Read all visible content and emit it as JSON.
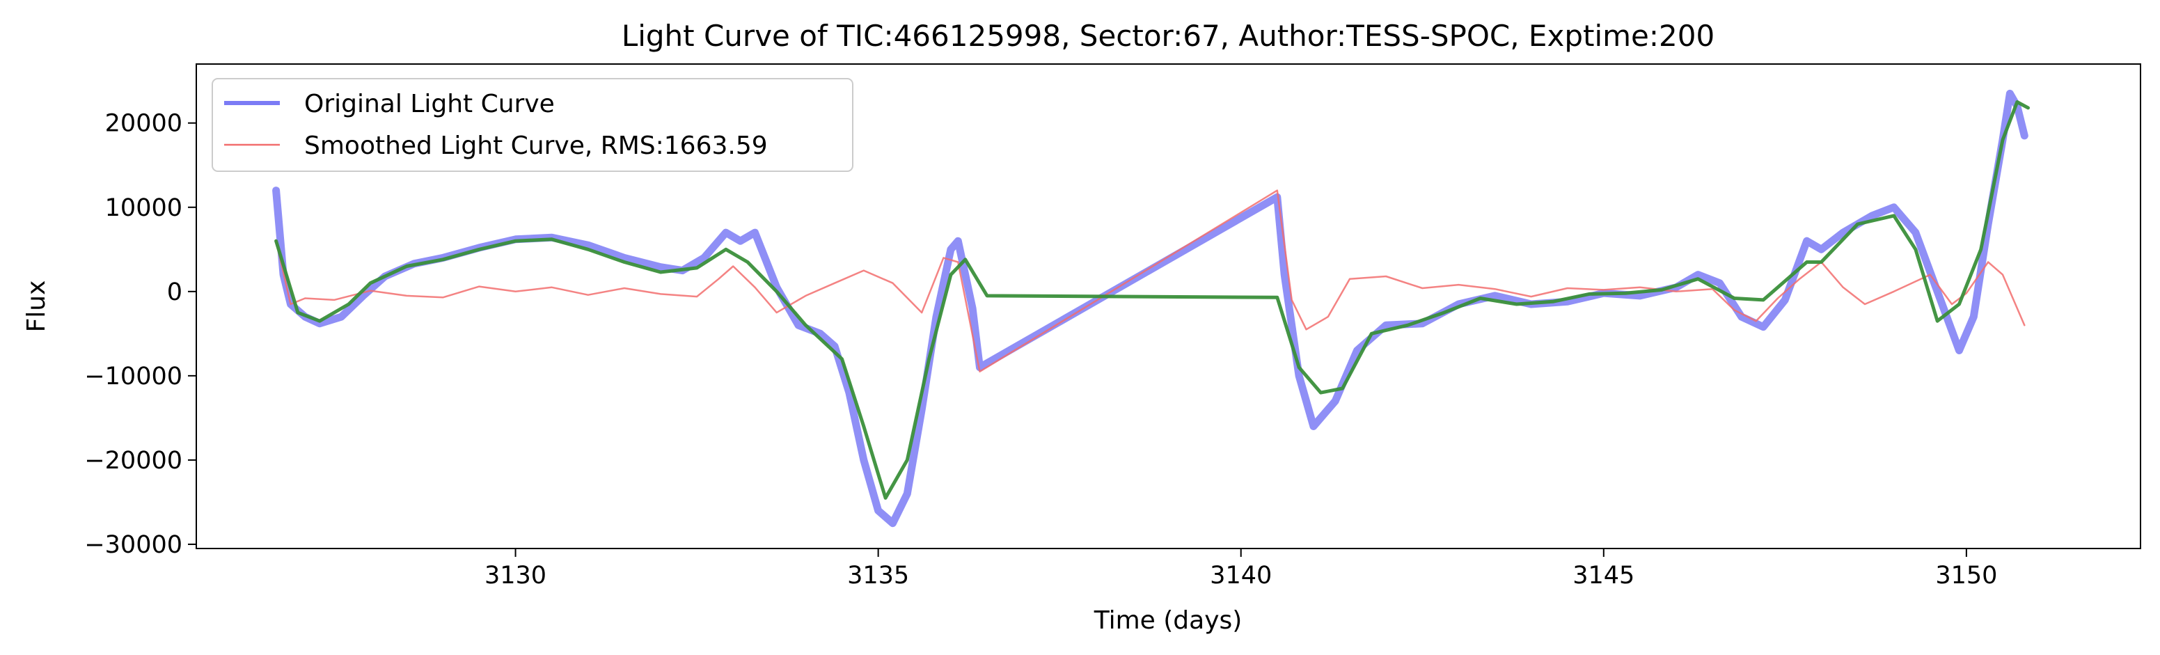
{
  "chart_data": {
    "type": "line",
    "title": "Light Curve of TIC:466125998, Sector:67, Author:TESS-SPOC, Exptime:200",
    "xlabel": "Time (days)",
    "ylabel": "Flux",
    "xlim": [
      3125.6,
      3152.4
    ],
    "ylim": [
      -30500,
      27000
    ],
    "xticks": [
      3130,
      3135,
      3140,
      3145,
      3150
    ],
    "xtick_labels": [
      "3130",
      "3135",
      "3140",
      "3145",
      "3150"
    ],
    "yticks": [
      -30000,
      -20000,
      -10000,
      0,
      10000,
      20000
    ],
    "ytick_labels": [
      "−30000",
      "−20000",
      "−10000",
      "0",
      "10000",
      "20000"
    ],
    "grid": false,
    "legend_position": "top-left",
    "series": [
      {
        "name": "Original Light Curve",
        "color": "#7b7bf5",
        "style": "thick",
        "points": [
          [
            3126.7,
            12000
          ],
          [
            3126.8,
            2000
          ],
          [
            3126.9,
            -1500
          ],
          [
            3127.1,
            -3000
          ],
          [
            3127.3,
            -3800
          ],
          [
            3127.6,
            -3000
          ],
          [
            3127.9,
            -500
          ],
          [
            3128.2,
            1800
          ],
          [
            3128.6,
            3300
          ],
          [
            3129.0,
            4000
          ],
          [
            3129.5,
            5200
          ],
          [
            3130.0,
            6200
          ],
          [
            3130.5,
            6400
          ],
          [
            3131.0,
            5500
          ],
          [
            3131.5,
            4000
          ],
          [
            3132.0,
            2900
          ],
          [
            3132.3,
            2500
          ],
          [
            3132.6,
            4000
          ],
          [
            3132.9,
            7000
          ],
          [
            3133.1,
            6000
          ],
          [
            3133.3,
            7000
          ],
          [
            3133.6,
            500
          ],
          [
            3133.9,
            -4000
          ],
          [
            3134.2,
            -5000
          ],
          [
            3134.4,
            -6500
          ],
          [
            3134.6,
            -12000
          ],
          [
            3134.8,
            -20000
          ],
          [
            3135.0,
            -26000
          ],
          [
            3135.2,
            -27500
          ],
          [
            3135.4,
            -24000
          ],
          [
            3135.6,
            -14000
          ],
          [
            3135.8,
            -3000
          ],
          [
            3136.0,
            5000
          ],
          [
            3136.1,
            6000
          ],
          [
            3136.3,
            -2000
          ],
          [
            3136.4,
            -9000
          ],
          [
            3140.5,
            11200
          ],
          [
            3140.6,
            2000
          ],
          [
            3140.8,
            -10000
          ],
          [
            3141.0,
            -16000
          ],
          [
            3141.3,
            -13000
          ],
          [
            3141.6,
            -7000
          ],
          [
            3142.0,
            -4000
          ],
          [
            3142.5,
            -3800
          ],
          [
            3143.0,
            -1500
          ],
          [
            3143.5,
            -500
          ],
          [
            3144.0,
            -1500
          ],
          [
            3144.5,
            -1200
          ],
          [
            3145.0,
            -200
          ],
          [
            3145.5,
            -500
          ],
          [
            3146.0,
            500
          ],
          [
            3146.3,
            2000
          ],
          [
            3146.6,
            1000
          ],
          [
            3146.9,
            -3000
          ],
          [
            3147.2,
            -4200
          ],
          [
            3147.5,
            -1000
          ],
          [
            3147.8,
            6000
          ],
          [
            3148.0,
            5000
          ],
          [
            3148.3,
            7000
          ],
          [
            3148.7,
            9000
          ],
          [
            3149.0,
            10000
          ],
          [
            3149.3,
            7000
          ],
          [
            3149.6,
            0
          ],
          [
            3149.9,
            -7000
          ],
          [
            3150.1,
            -3000
          ],
          [
            3150.3,
            8000
          ],
          [
            3150.5,
            18000
          ],
          [
            3150.6,
            23500
          ],
          [
            3150.7,
            22000
          ],
          [
            3150.8,
            18500
          ]
        ]
      },
      {
        "name": "Smoothed Light Curve, RMS:1663.59",
        "color": "#f26d6d",
        "style": "thin",
        "points": [
          [
            3126.7,
            6000
          ],
          [
            3126.9,
            -1500
          ],
          [
            3127.1,
            -800
          ],
          [
            3127.5,
            -1000
          ],
          [
            3128.0,
            100
          ],
          [
            3128.5,
            -500
          ],
          [
            3129.0,
            -700
          ],
          [
            3129.5,
            600
          ],
          [
            3130.0,
            0
          ],
          [
            3130.5,
            500
          ],
          [
            3131.0,
            -400
          ],
          [
            3131.5,
            400
          ],
          [
            3132.0,
            -300
          ],
          [
            3132.5,
            -600
          ],
          [
            3132.8,
            1500
          ],
          [
            3133.0,
            3000
          ],
          [
            3133.3,
            500
          ],
          [
            3133.6,
            -2500
          ],
          [
            3134.0,
            -500
          ],
          [
            3134.4,
            1000
          ],
          [
            3134.8,
            2500
          ],
          [
            3135.2,
            1000
          ],
          [
            3135.6,
            -2500
          ],
          [
            3135.9,
            4000
          ],
          [
            3136.1,
            3500
          ],
          [
            3136.4,
            -9500
          ],
          [
            3140.5,
            12000
          ],
          [
            3140.7,
            -1000
          ],
          [
            3140.9,
            -4500
          ],
          [
            3141.2,
            -3000
          ],
          [
            3141.5,
            1500
          ],
          [
            3142.0,
            1800
          ],
          [
            3142.5,
            400
          ],
          [
            3143.0,
            800
          ],
          [
            3143.5,
            300
          ],
          [
            3144.0,
            -600
          ],
          [
            3144.5,
            400
          ],
          [
            3145.0,
            200
          ],
          [
            3145.5,
            500
          ],
          [
            3146.0,
            0
          ],
          [
            3146.5,
            300
          ],
          [
            3146.8,
            -2200
          ],
          [
            3147.1,
            -3500
          ],
          [
            3147.4,
            -800
          ],
          [
            3147.7,
            1500
          ],
          [
            3148.0,
            3500
          ],
          [
            3148.3,
            500
          ],
          [
            3148.6,
            -1500
          ],
          [
            3149.0,
            0
          ],
          [
            3149.5,
            2000
          ],
          [
            3149.8,
            -1500
          ],
          [
            3150.0,
            -200
          ],
          [
            3150.3,
            3500
          ],
          [
            3150.5,
            2000
          ],
          [
            3150.8,
            -4000
          ]
        ]
      },
      {
        "name": "",
        "color": "#3a8f3a",
        "style": "medium",
        "points": [
          [
            3126.7,
            6000
          ],
          [
            3127.0,
            -2500
          ],
          [
            3127.3,
            -3500
          ],
          [
            3127.7,
            -1500
          ],
          [
            3128.0,
            1000
          ],
          [
            3128.5,
            3000
          ],
          [
            3129.0,
            3800
          ],
          [
            3129.5,
            5000
          ],
          [
            3130.0,
            6000
          ],
          [
            3130.5,
            6200
          ],
          [
            3131.0,
            5000
          ],
          [
            3131.5,
            3500
          ],
          [
            3132.0,
            2300
          ],
          [
            3132.5,
            2800
          ],
          [
            3132.9,
            5000
          ],
          [
            3133.2,
            3500
          ],
          [
            3133.6,
            0
          ],
          [
            3134.0,
            -4000
          ],
          [
            3134.5,
            -8000
          ],
          [
            3134.8,
            -16000
          ],
          [
            3135.1,
            -24500
          ],
          [
            3135.4,
            -20000
          ],
          [
            3135.7,
            -8000
          ],
          [
            3136.0,
            2000
          ],
          [
            3136.2,
            3800
          ],
          [
            3136.5,
            -500
          ],
          [
            3140.5,
            -700
          ],
          [
            3140.8,
            -9000
          ],
          [
            3141.1,
            -12000
          ],
          [
            3141.4,
            -11500
          ],
          [
            3141.8,
            -5000
          ],
          [
            3142.3,
            -4000
          ],
          [
            3142.8,
            -2500
          ],
          [
            3143.3,
            -800
          ],
          [
            3143.8,
            -1500
          ],
          [
            3144.3,
            -1200
          ],
          [
            3144.8,
            -300
          ],
          [
            3145.3,
            -200
          ],
          [
            3145.8,
            200
          ],
          [
            3146.3,
            1500
          ],
          [
            3146.8,
            -800
          ],
          [
            3147.2,
            -1000
          ],
          [
            3147.8,
            3500
          ],
          [
            3148.0,
            3500
          ],
          [
            3148.5,
            8000
          ],
          [
            3149.0,
            9000
          ],
          [
            3149.3,
            5000
          ],
          [
            3149.6,
            -3500
          ],
          [
            3149.9,
            -1500
          ],
          [
            3150.2,
            5000
          ],
          [
            3150.5,
            18000
          ],
          [
            3150.7,
            22500
          ],
          [
            3150.85,
            21800
          ]
        ]
      }
    ],
    "legend": [
      {
        "label": "Original Light Curve",
        "color": "#7b7bf5"
      },
      {
        "label": "Smoothed Light Curve, RMS:1663.59",
        "color": "#f26d6d"
      }
    ]
  }
}
